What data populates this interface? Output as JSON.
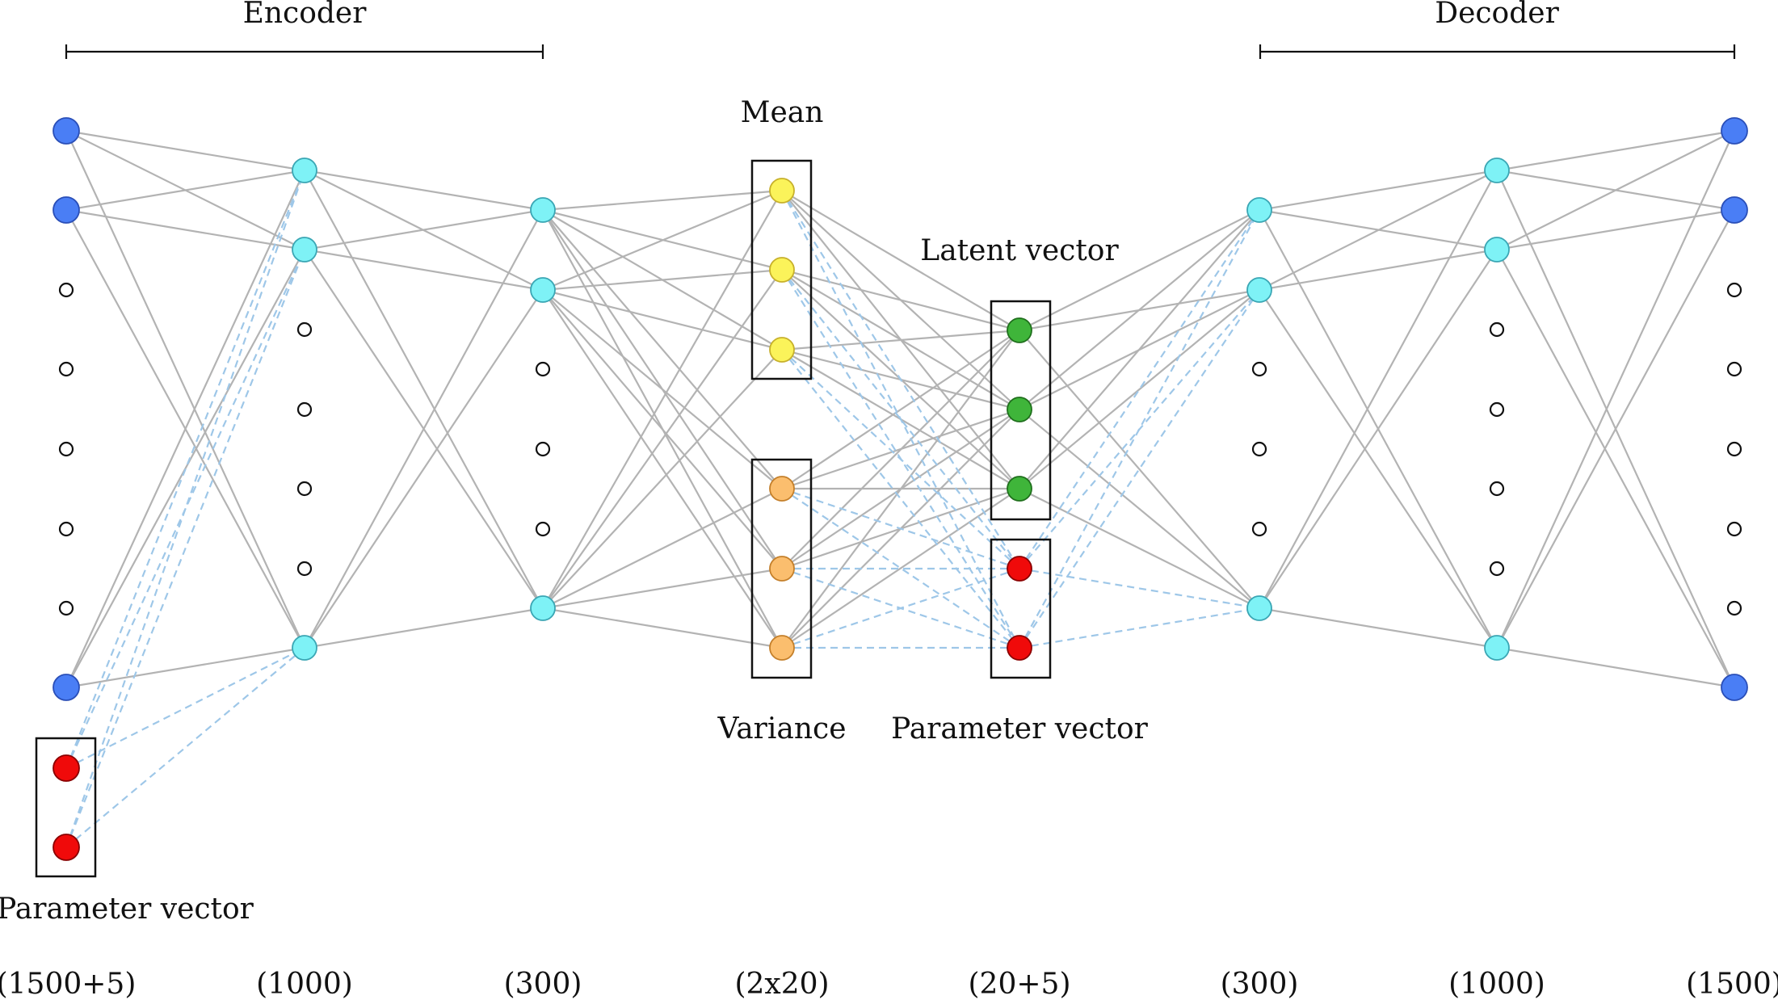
{
  "sections": {
    "encoder": "Encoder",
    "decoder": "Decoder"
  },
  "labels": {
    "mean": "Mean",
    "variance": "Variance",
    "latent_vector": "Latent vector",
    "parameter_vector_input": "Parameter vector",
    "parameter_vector_latent": "Parameter vector"
  },
  "layer_sizes": [
    "(1500+5)",
    "(1000)",
    "(300)",
    "(2x20)",
    "(20+5)",
    "(300)",
    "(1000)",
    "(1500)"
  ],
  "colors": {
    "input_output_node": "#4a7ef5",
    "hidden_node": "#7ef2f6",
    "mean_node": "#fbf35a",
    "variance_node": "#fbbe6e",
    "latent_node": "#3fb53a",
    "parameter_node": "#f00a0a",
    "edge": "#b3b3b3",
    "parameter_edge": "#9ec7e8"
  }
}
